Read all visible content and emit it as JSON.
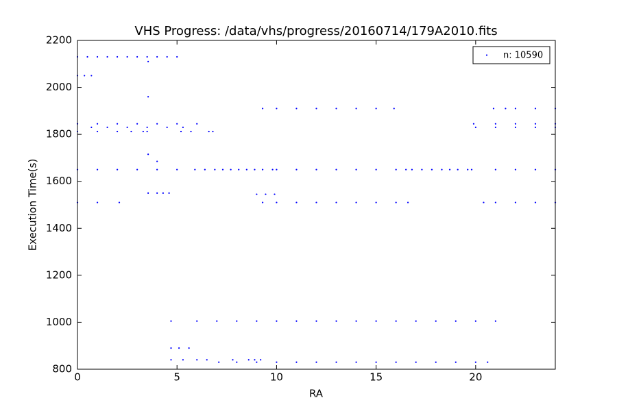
{
  "chart_data": {
    "type": "scatter",
    "title": "VHS Progress: /data/vhs/progress/20160714/179A2010.fits",
    "x_label": "RA",
    "y_label": "Execution Time(s)",
    "xlim": [
      0,
      24
    ],
    "ylim": [
      800,
      2200
    ],
    "xticks": [
      0,
      5,
      10,
      15,
      20
    ],
    "yticks": [
      800,
      1000,
      1200,
      1400,
      1600,
      1800,
      2000,
      2200
    ],
    "legend": "upper right",
    "series": [
      {
        "name": "n: 10590",
        "color": "#0000ff",
        "x": [
          0,
          0.5,
          1,
          1.5,
          2,
          2.5,
          3,
          3.5,
          4,
          4.5,
          5,
          0,
          0.35,
          0.7,
          3.55,
          3.55,
          9.3,
          10,
          11,
          12,
          13,
          14,
          15,
          15.9,
          20.9,
          21.5,
          22,
          23,
          24,
          0,
          1,
          2,
          3,
          4,
          5,
          6,
          19.9,
          21,
          22,
          23,
          24,
          0.7,
          1.5,
          2.5,
          3.5,
          4.5,
          5.3,
          20,
          21,
          22,
          23,
          24,
          0,
          1,
          2,
          2.7,
          3.3,
          3.5,
          5.2,
          5.7,
          6.6,
          6.8,
          3.55,
          4,
          0,
          1,
          2,
          3,
          4,
          5,
          5.9,
          6.4,
          6.9,
          7.3,
          7.7,
          8.1,
          8.5,
          8.9,
          9.3,
          9.8,
          10,
          11,
          12,
          13,
          14,
          15,
          16,
          16.5,
          16.8,
          17.3,
          17.8,
          18.3,
          18.7,
          19.1,
          19.6,
          19.8,
          21,
          22,
          23,
          24,
          3.55,
          4,
          4.3,
          4.6,
          9,
          9.45,
          9.9,
          0,
          1,
          2.1,
          9.3,
          10,
          11,
          12,
          13,
          14,
          15,
          16,
          16.6,
          20.4,
          21,
          22,
          23,
          24,
          4.7,
          6,
          7,
          8,
          9,
          10,
          11,
          12,
          13,
          14,
          15,
          16,
          17,
          18,
          19,
          20,
          21,
          4.7,
          5.1,
          5.6,
          4.7,
          5.3,
          6,
          6.5,
          7.8,
          8.6,
          8.9,
          9.2,
          7.1,
          8,
          9,
          10,
          11,
          12,
          13,
          14,
          15,
          16,
          17,
          18,
          19,
          20,
          20.6
        ],
        "values": [
          2130,
          2130,
          2130,
          2130,
          2130,
          2130,
          2130,
          2130,
          2130,
          2130,
          2130,
          2050,
          2050,
          2050,
          2110,
          1960,
          1910,
          1910,
          1910,
          1910,
          1910,
          1910,
          1910,
          1910,
          1910,
          1910,
          1910,
          1910,
          1910,
          1845,
          1845,
          1845,
          1845,
          1845,
          1845,
          1845,
          1845,
          1845,
          1845,
          1845,
          1845,
          1830,
          1830,
          1830,
          1830,
          1830,
          1830,
          1830,
          1830,
          1830,
          1830,
          1830,
          1812,
          1812,
          1812,
          1812,
          1812,
          1812,
          1812,
          1812,
          1812,
          1812,
          1715,
          1685,
          1650,
          1650,
          1650,
          1650,
          1650,
          1650,
          1650,
          1650,
          1650,
          1650,
          1650,
          1650,
          1650,
          1650,
          1650,
          1650,
          1650,
          1650,
          1650,
          1650,
          1650,
          1650,
          1650,
          1650,
          1650,
          1650,
          1650,
          1650,
          1650,
          1650,
          1650,
          1650,
          1650,
          1650,
          1650,
          1650,
          1550,
          1550,
          1550,
          1550,
          1545,
          1545,
          1545,
          1510,
          1510,
          1510,
          1510,
          1510,
          1510,
          1510,
          1510,
          1510,
          1510,
          1510,
          1510,
          1510,
          1510,
          1510,
          1510,
          1510,
          1005,
          1005,
          1005,
          1005,
          1005,
          1005,
          1005,
          1005,
          1005,
          1005,
          1005,
          1005,
          1005,
          1005,
          1005,
          1005,
          1005,
          890,
          890,
          890,
          840,
          840,
          840,
          840,
          840,
          840,
          840,
          840,
          830,
          830,
          830,
          830,
          830,
          830,
          830,
          830,
          830,
          830,
          830,
          830,
          830,
          830,
          830
        ]
      }
    ]
  }
}
